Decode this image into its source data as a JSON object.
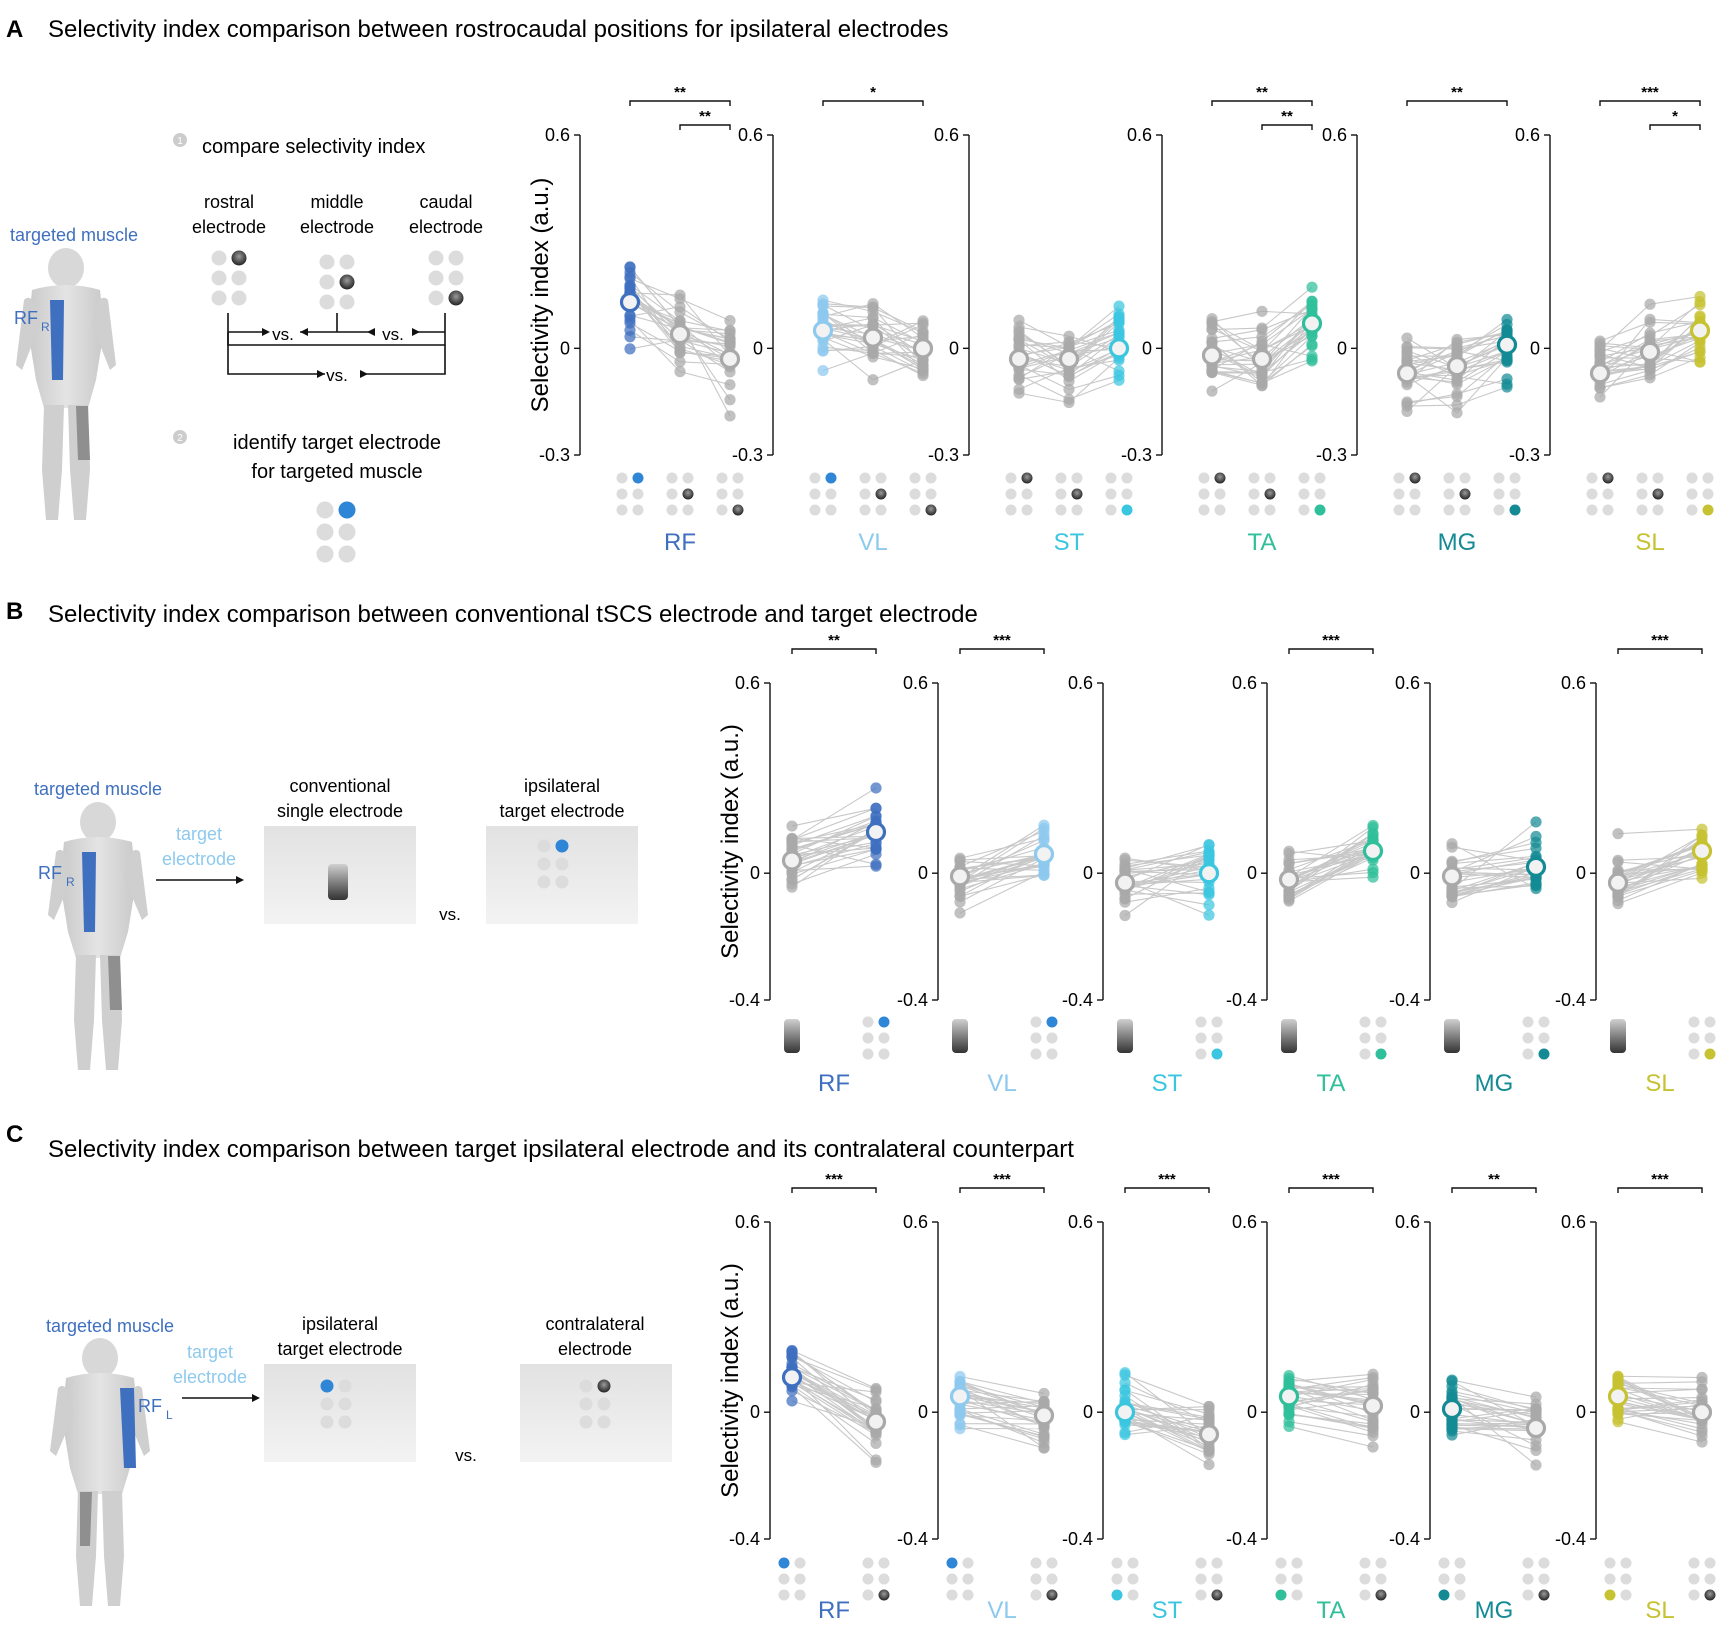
{
  "colors": {
    "RF": "#3f6fbf",
    "VL": "#8ec9ee",
    "ST": "#3bc6e0",
    "TA": "#2fbf9a",
    "MG": "#138a94",
    "SL": "#c6c231",
    "gray": "#a9a9a9",
    "target_blue": "#2f86d6"
  },
  "panels": [
    {
      "letter": "A",
      "title": "Selectivity index comparison between rostrocaudal positions for ipsilateral electrodes",
      "schematic": {
        "targeted_muscle": "targeted muscle",
        "muscle_label": "RF",
        "muscle_sub": "R",
        "step1": "compare selectivity index",
        "step2_line1": "identify target electrode",
        "step2_line2": "for targeted muscle",
        "electrodes": [
          {
            "line1": "rostral",
            "line2": "electrode"
          },
          {
            "line1": "middle",
            "line2": "electrode"
          },
          {
            "line1": "caudal",
            "line2": "electrode"
          }
        ],
        "vs": "vs."
      },
      "ylabel": "Selectivity index (a.u.)",
      "ylim": [
        -0.3,
        0.6
      ],
      "yticks": [
        "0.6",
        "0",
        "-0.3"
      ],
      "icons": [
        "rostral",
        "middle",
        "caudal"
      ],
      "charts": [
        {
          "muscle": "RF",
          "colored": 0,
          "means": [
            0.13,
            0.04,
            -0.03
          ],
          "n": [
            28,
            30,
            30
          ],
          "sig": [
            {
              "from": 0,
              "to": 2,
              "label": "**"
            },
            {
              "from": 1,
              "to": 2,
              "label": "**"
            }
          ]
        },
        {
          "muscle": "VL",
          "colored": 0,
          "means": [
            0.05,
            0.03,
            0.0
          ],
          "n": [
            28,
            30,
            30
          ],
          "sig": [
            {
              "from": 0,
              "to": 2,
              "label": "*"
            }
          ]
        },
        {
          "muscle": "ST",
          "colored": 2,
          "means": [
            -0.03,
            -0.03,
            0.0
          ],
          "n": [
            28,
            30,
            30
          ],
          "sig": []
        },
        {
          "muscle": "TA",
          "colored": 2,
          "means": [
            -0.02,
            -0.03,
            0.07
          ],
          "n": [
            28,
            30,
            30
          ],
          "sig": [
            {
              "from": 0,
              "to": 2,
              "label": "**"
            },
            {
              "from": 1,
              "to": 2,
              "label": "**"
            }
          ]
        },
        {
          "muscle": "MG",
          "colored": 2,
          "means": [
            -0.07,
            -0.05,
            0.01
          ],
          "n": [
            28,
            30,
            30
          ],
          "sig": [
            {
              "from": 0,
              "to": 2,
              "label": "**"
            }
          ]
        },
        {
          "muscle": "SL",
          "colored": 2,
          "means": [
            -0.07,
            -0.01,
            0.05
          ],
          "n": [
            28,
            30,
            30
          ],
          "sig": [
            {
              "from": 0,
              "to": 2,
              "label": "***"
            },
            {
              "from": 1,
              "to": 2,
              "label": "*"
            }
          ]
        }
      ]
    },
    {
      "letter": "B",
      "title": "Selectivity index comparison between conventional tSCS electrode and target electrode",
      "schematic": {
        "targeted_muscle": "targeted muscle",
        "muscle_label": "RF",
        "muscle_sub": "R",
        "arrow_line1": "target",
        "arrow_line2": "electrode",
        "left_line1": "conventional",
        "left_line2": "single electrode",
        "right_line1": "ipsilateral",
        "right_line2": "target electrode",
        "vs": "vs."
      },
      "ylabel": "Selectivity index (a.u.)",
      "ylim": [
        -0.4,
        0.6
      ],
      "yticks": [
        "0.6",
        "0",
        "-0.4"
      ],
      "icons": [
        "conventional",
        "target"
      ],
      "charts": [
        {
          "muscle": "RF",
          "colored": 1,
          "means": [
            0.04,
            0.13
          ],
          "n": [
            30,
            30
          ],
          "sig": [
            {
              "from": 0,
              "to": 1,
              "label": "**"
            }
          ]
        },
        {
          "muscle": "VL",
          "colored": 1,
          "means": [
            -0.01,
            0.06
          ],
          "n": [
            30,
            30
          ],
          "sig": [
            {
              "from": 0,
              "to": 1,
              "label": "***"
            }
          ]
        },
        {
          "muscle": "ST",
          "colored": 1,
          "means": [
            -0.03,
            0.0
          ],
          "n": [
            30,
            30
          ],
          "sig": []
        },
        {
          "muscle": "TA",
          "colored": 1,
          "means": [
            -0.02,
            0.07
          ],
          "n": [
            30,
            30
          ],
          "sig": [
            {
              "from": 0,
              "to": 1,
              "label": "***"
            }
          ]
        },
        {
          "muscle": "MG",
          "colored": 1,
          "means": [
            -0.01,
            0.02
          ],
          "n": [
            30,
            30
          ],
          "sig": []
        },
        {
          "muscle": "SL",
          "colored": 1,
          "means": [
            -0.03,
            0.07
          ],
          "n": [
            30,
            30
          ],
          "sig": [
            {
              "from": 0,
              "to": 1,
              "label": "***"
            }
          ]
        }
      ]
    },
    {
      "letter": "C",
      "title": "Selectivity index comparison between target ipsilateral electrode and its contralateral counterpart",
      "schematic": {
        "targeted_muscle": "targeted muscle",
        "muscle_label": "RF",
        "muscle_sub": "L",
        "arrow_line1": "target",
        "arrow_line2": "electrode",
        "left_line1": "ipsilateral",
        "left_line2": "target electrode",
        "right_line1": "contralateral",
        "right_line2": "electrode",
        "vs": "vs."
      },
      "ylabel": "Selectivity index (a.u.)",
      "ylim": [
        -0.4,
        0.6
      ],
      "yticks": [
        "0.6",
        "0",
        "-0.4"
      ],
      "icons": [
        "target",
        "contra"
      ],
      "charts": [
        {
          "muscle": "RF",
          "colored": 0,
          "means": [
            0.11,
            -0.03
          ],
          "n": [
            30,
            30
          ],
          "sig": [
            {
              "from": 0,
              "to": 1,
              "label": "***"
            }
          ]
        },
        {
          "muscle": "VL",
          "colored": 0,
          "means": [
            0.05,
            -0.01
          ],
          "n": [
            30,
            30
          ],
          "sig": [
            {
              "from": 0,
              "to": 1,
              "label": "***"
            }
          ]
        },
        {
          "muscle": "ST",
          "colored": 0,
          "means": [
            0.0,
            -0.07
          ],
          "n": [
            30,
            30
          ],
          "sig": [
            {
              "from": 0,
              "to": 1,
              "label": "***"
            }
          ]
        },
        {
          "muscle": "TA",
          "colored": 0,
          "means": [
            0.05,
            0.02
          ],
          "n": [
            30,
            30
          ],
          "sig": [
            {
              "from": 0,
              "to": 1,
              "label": "***"
            }
          ]
        },
        {
          "muscle": "MG",
          "colored": 0,
          "means": [
            0.01,
            -0.05
          ],
          "n": [
            30,
            30
          ],
          "sig": [
            {
              "from": 0,
              "to": 1,
              "label": "**"
            }
          ]
        },
        {
          "muscle": "SL",
          "colored": 0,
          "means": [
            0.05,
            0.0
          ],
          "n": [
            30,
            30
          ],
          "sig": [
            {
              "from": 0,
              "to": 1,
              "label": "***"
            }
          ]
        }
      ]
    }
  ],
  "chart_data": [
    {
      "type": "scatter",
      "title": "Selectivity index comparison between rostrocaudal positions for ipsilateral electrodes",
      "ylabel": "Selectivity index (a.u.)",
      "ylim": [
        -0.3,
        0.6
      ],
      "categories": [
        "rostral",
        "middle",
        "caudal"
      ],
      "series": [
        {
          "name": "RF",
          "values": [
            0.13,
            0.04,
            -0.03
          ]
        },
        {
          "name": "VL",
          "values": [
            0.05,
            0.03,
            0.0
          ]
        },
        {
          "name": "ST",
          "values": [
            -0.03,
            -0.03,
            0.0
          ]
        },
        {
          "name": "TA",
          "values": [
            -0.02,
            -0.03,
            0.07
          ]
        },
        {
          "name": "MG",
          "values": [
            -0.07,
            -0.05,
            0.01
          ]
        },
        {
          "name": "SL",
          "values": [
            -0.07,
            -0.01,
            0.05
          ]
        }
      ]
    },
    {
      "type": "scatter",
      "title": "Selectivity index comparison between conventional tSCS electrode and target electrode",
      "ylabel": "Selectivity index (a.u.)",
      "ylim": [
        -0.4,
        0.6
      ],
      "categories": [
        "conventional single electrode",
        "ipsilateral target electrode"
      ],
      "series": [
        {
          "name": "RF",
          "values": [
            0.04,
            0.13
          ]
        },
        {
          "name": "VL",
          "values": [
            -0.01,
            0.06
          ]
        },
        {
          "name": "ST",
          "values": [
            -0.03,
            0.0
          ]
        },
        {
          "name": "TA",
          "values": [
            -0.02,
            0.07
          ]
        },
        {
          "name": "MG",
          "values": [
            -0.01,
            0.02
          ]
        },
        {
          "name": "SL",
          "values": [
            -0.03,
            0.07
          ]
        }
      ]
    },
    {
      "type": "scatter",
      "title": "Selectivity index comparison between target ipsilateral electrode and its contralateral counterpart",
      "ylabel": "Selectivity index (a.u.)",
      "ylim": [
        -0.4,
        0.6
      ],
      "categories": [
        "ipsilateral target electrode",
        "contralateral electrode"
      ],
      "series": [
        {
          "name": "RF",
          "values": [
            0.11,
            -0.03
          ]
        },
        {
          "name": "VL",
          "values": [
            0.05,
            -0.01
          ]
        },
        {
          "name": "ST",
          "values": [
            0.0,
            -0.07
          ]
        },
        {
          "name": "TA",
          "values": [
            0.05,
            0.02
          ]
        },
        {
          "name": "MG",
          "values": [
            0.01,
            -0.05
          ]
        },
        {
          "name": "SL",
          "values": [
            0.05,
            0.0
          ]
        }
      ]
    }
  ]
}
